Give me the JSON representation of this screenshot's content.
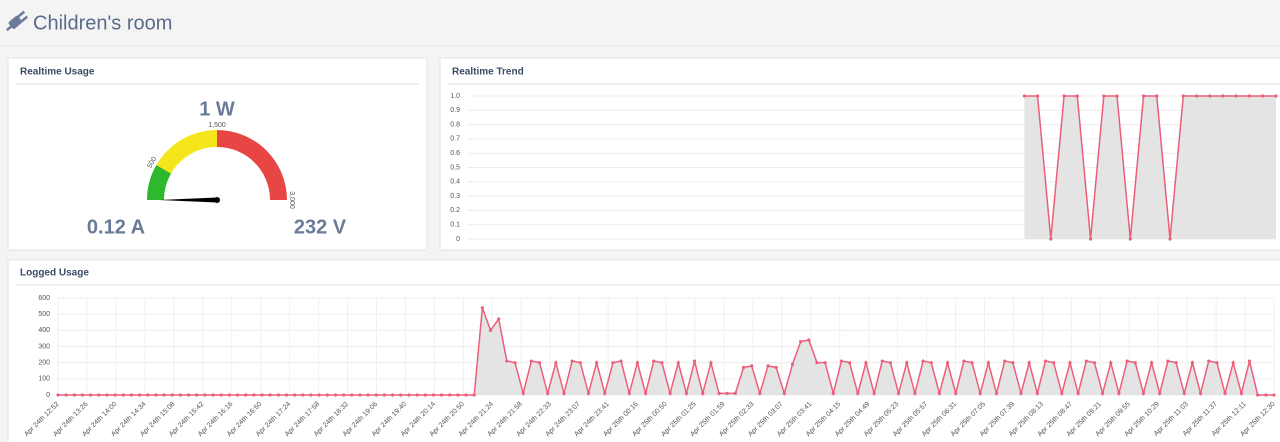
{
  "header": {
    "title": "Children's room"
  },
  "realtime_usage": {
    "title": "Realtime Usage",
    "power": {
      "value": 1,
      "label": "1 W"
    },
    "current": "0.12 A",
    "voltage": "232 V",
    "gauge": {
      "type": "gauge",
      "range": [
        0,
        3000
      ],
      "ticks": [
        500,
        {
          "value": 1500,
          "label": "1,500"
        },
        {
          "value": 3000,
          "label": "3,000"
        }
      ],
      "bands": [
        {
          "from": 0,
          "to": 500,
          "color": "#2eb82e"
        },
        {
          "from": 500,
          "to": 1500,
          "color": "#f5e61c"
        },
        {
          "from": 1500,
          "to": 3000,
          "color": "#e84545"
        }
      ],
      "needle_color": "#000000"
    }
  },
  "realtime_trend": {
    "title": "Realtime Trend",
    "chart_data": {
      "type": "line",
      "color": "#ec5f7a",
      "fill": "#e4e4e4",
      "values": [
        null,
        null,
        null,
        null,
        null,
        null,
        null,
        null,
        null,
        null,
        null,
        null,
        null,
        null,
        null,
        null,
        null,
        null,
        null,
        null,
        null,
        null,
        null,
        null,
        null,
        null,
        null,
        null,
        null,
        null,
        null,
        null,
        null,
        null,
        null,
        null,
        null,
        null,
        null,
        null,
        null,
        null,
        1,
        1,
        0,
        1,
        1,
        0,
        1,
        1,
        0,
        1,
        1,
        0,
        1,
        1,
        1,
        1,
        1,
        1,
        1,
        1
      ],
      "ylim": [
        0,
        1
      ],
      "yticks": [
        0,
        0.1,
        0.2,
        0.3,
        0.4,
        0.5,
        0.6,
        0.7,
        0.8,
        0.9,
        {
          "value": 1,
          "label": "1.0"
        }
      ],
      "grid": true,
      "markers": true
    }
  },
  "logged_usage": {
    "title": "Logged Usage",
    "chart_data": {
      "type": "line",
      "color": "#ec5f7a",
      "fill": "#e4e4e4",
      "x_tick_labels": [
        "Apr 24th 12:52",
        "Apr 24th 13:26",
        "Apr 24th 14:00",
        "Apr 24th 14:34",
        "Apr 24th 15:08",
        "Apr 24th 15:42",
        "Apr 24th 16:16",
        "Apr 24th 16:50",
        "Apr 24th 17:24",
        "Apr 24th 17:58",
        "Apr 24th 18:32",
        "Apr 24th 19:06",
        "Apr 24th 19:40",
        "Apr 24th 20:14",
        "Apr 24th 20:50",
        "Apr 24th 21:24",
        "Apr 24th 21:58",
        "Apr 24th 22:33",
        "Apr 24th 23:07",
        "Apr 24th 23:41",
        "Apr 25th 00:16",
        "Apr 25th 00:50",
        "Apr 25th 01:25",
        "Apr 25th 01:59",
        "Apr 25th 02:33",
        "Apr 25th 03:07",
        "Apr 25th 03:41",
        "Apr 25th 04:15",
        "Apr 25th 04:49",
        "Apr 25th 05:23",
        "Apr 25th 05:57",
        "Apr 25th 06:31",
        "Apr 25th 07:05",
        "Apr 25th 07:39",
        "Apr 25th 08:13",
        "Apr 25th 08:47",
        "Apr 25th 09:21",
        "Apr 25th 09:55",
        "Apr 25th 10:29",
        "Apr 25th 11:03",
        "Apr 25th 11:37",
        "Apr 25th 12:11",
        "Apr 25th 12:30"
      ],
      "values": [
        0,
        0,
        0,
        0,
        0,
        0,
        0,
        0,
        0,
        0,
        0,
        0,
        0,
        0,
        0,
        0,
        0,
        0,
        0,
        0,
        0,
        0,
        0,
        0,
        0,
        0,
        0,
        0,
        0,
        0,
        0,
        0,
        0,
        0,
        0,
        0,
        0,
        0,
        0,
        0,
        0,
        0,
        0,
        0,
        0,
        0,
        0,
        0,
        0,
        0,
        0,
        0,
        540,
        400,
        470,
        210,
        200,
        10,
        210,
        200,
        10,
        200,
        10,
        210,
        200,
        10,
        200,
        10,
        200,
        210,
        10,
        200,
        10,
        210,
        200,
        10,
        200,
        10,
        210,
        10,
        200,
        10,
        10,
        10,
        170,
        180,
        10,
        180,
        170,
        10,
        190,
        330,
        340,
        200,
        200,
        10,
        210,
        200,
        10,
        200,
        10,
        210,
        200,
        10,
        200,
        10,
        210,
        200,
        10,
        200,
        10,
        210,
        200,
        10,
        200,
        10,
        210,
        200,
        10,
        200,
        10,
        210,
        200,
        10,
        200,
        10,
        210,
        200,
        10,
        200,
        10,
        210,
        200,
        10,
        200,
        10,
        210,
        200,
        10,
        200,
        10,
        210,
        200,
        10,
        200,
        10,
        210,
        0,
        0,
        0
      ],
      "ylim": [
        0,
        600
      ],
      "yticks": [
        0,
        100,
        200,
        300,
        400,
        500,
        600
      ],
      "grid": true,
      "markers": true
    }
  }
}
